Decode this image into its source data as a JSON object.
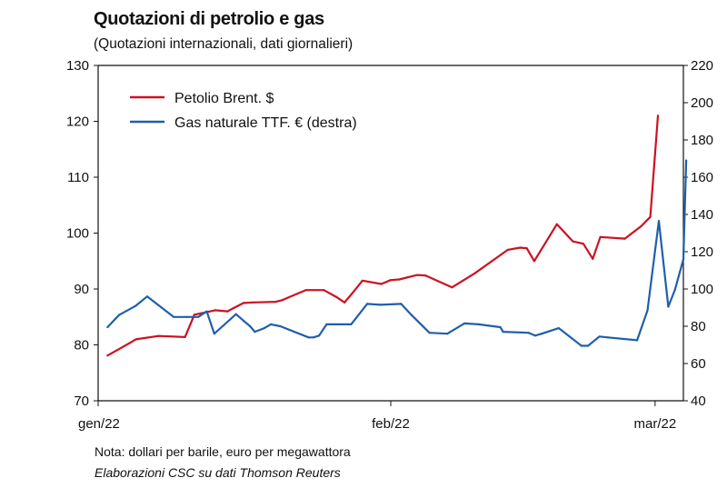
{
  "chart_data": {
    "type": "line",
    "title": "Quotazioni di petrolio e gas",
    "subtitle": "(Quotazioni internazionali, dati giornalieri)",
    "x_labels": [
      "gen/22",
      "feb/22",
      "mar/22"
    ],
    "x_label_days": [
      0,
      31,
      59
    ],
    "x_range": [
      0,
      62
    ],
    "y_left": {
      "min": 70,
      "max": 130,
      "ticks": [
        70,
        80,
        90,
        100,
        110,
        120,
        130
      ]
    },
    "y_right": {
      "min": 40,
      "max": 220,
      "ticks": [
        40,
        60,
        80,
        100,
        120,
        140,
        160,
        180,
        200,
        220
      ]
    },
    "series": [
      {
        "name": "Petolio Brent. $",
        "axis": "left",
        "color": "#cc1122",
        "x": [
          1.0,
          3.3,
          4.0,
          6.4,
          9.2,
          10.2,
          12.4,
          13.7,
          15.4,
          16.4,
          18.8,
          19.5,
          22.0,
          23.9,
          25.2,
          26.1,
          27.1,
          28.0,
          30.0,
          31.0,
          31.9,
          33.8,
          34.7,
          37.5,
          39.9,
          43.4,
          44.7,
          45.4,
          46.2,
          48.6,
          50.3,
          51.4,
          52.4,
          53.2,
          55.8,
          57.5,
          58.5,
          59.3
        ],
        "values": [
          78.1,
          80.3,
          81.0,
          81.6,
          81.4,
          85.4,
          86.2,
          86.0,
          87.5,
          87.6,
          87.7,
          88.0,
          89.8,
          89.8,
          88.6,
          87.6,
          89.6,
          91.5,
          90.9,
          91.6,
          91.7,
          92.5,
          92.4,
          90.3,
          92.8,
          97.0,
          97.4,
          97.3,
          95.0,
          101.6,
          98.5,
          98.1,
          95.4,
          99.3,
          99.0,
          101.2,
          102.9,
          121.0
        ]
      },
      {
        "name": "Gas naturale TTF. € (destra)",
        "axis": "right",
        "color": "#1f5fab",
        "x": [
          1.0,
          2.2,
          4.0,
          5.2,
          8.0,
          9.4,
          10.0,
          10.6,
          11.5,
          12.3,
          14.6,
          15.4,
          16.1,
          16.6,
          17.6,
          18.3,
          19.3,
          22.3,
          22.8,
          23.4,
          24.2,
          26.8,
          28.5,
          29.9,
          32.1,
          33.2,
          35.1,
          37.0,
          38.8,
          40.3,
          42.6,
          42.9,
          45.6,
          46.3,
          47.0,
          48.8,
          51.2,
          51.9,
          53.1,
          54.0,
          57.1,
          58.2,
          59.4,
          60.4,
          61.1,
          62.0,
          62.3
        ],
        "values": [
          79.5,
          86.0,
          91.0,
          96.0,
          85.0,
          85.0,
          85.0,
          85.0,
          88.0,
          76.0,
          86.5,
          83.0,
          80.0,
          77.0,
          79.0,
          81.0,
          80.0,
          74.0,
          74.0,
          75.0,
          81.0,
          81.0,
          92.0,
          91.5,
          92.0,
          86.0,
          76.5,
          76.0,
          81.5,
          81.0,
          79.5,
          77.0,
          76.5,
          75.0,
          76.0,
          79.0,
          69.5,
          69.5,
          74.5,
          74.0,
          72.5,
          88.5,
          136.5,
          90.5,
          99.5,
          116.0,
          169.0
        ]
      }
    ],
    "legend": [
      "Petolio Brent. $",
      "Gas naturale TTF. € (destra)"
    ],
    "legend_position": "top-left"
  },
  "footer": {
    "note": "Nota: dollari per barile, euro per megawattora",
    "source": "Elaborazioni CSC su dati Thomson Reuters"
  }
}
